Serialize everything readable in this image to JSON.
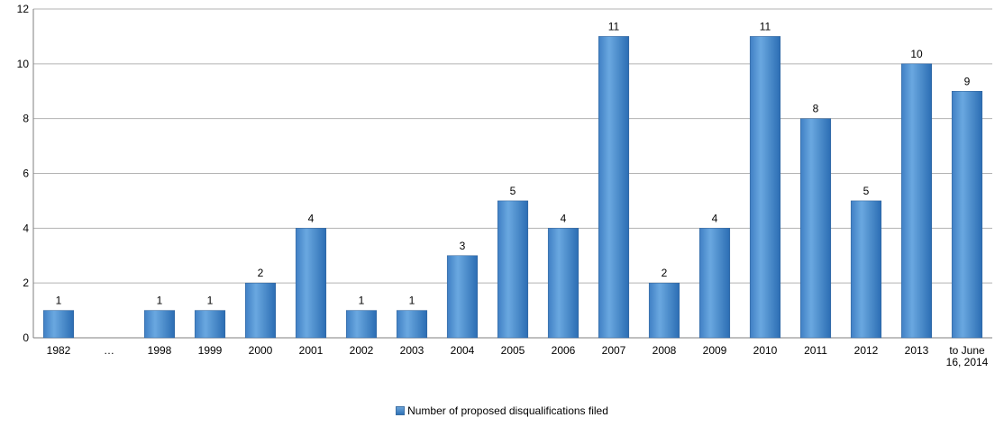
{
  "chart_data": {
    "type": "bar",
    "categories": [
      "1982",
      "…",
      "1998",
      "1999",
      "2000",
      "2001",
      "2002",
      "2003",
      "2004",
      "2005",
      "2006",
      "2007",
      "2008",
      "2009",
      "2010",
      "2011",
      "2012",
      "2013",
      "to June 16, 2014"
    ],
    "category_lines": [
      [
        "1982"
      ],
      [
        "…"
      ],
      [
        "1998"
      ],
      [
        "1999"
      ],
      [
        "2000"
      ],
      [
        "2001"
      ],
      [
        "2002"
      ],
      [
        "2003"
      ],
      [
        "2004"
      ],
      [
        "2005"
      ],
      [
        "2006"
      ],
      [
        "2007"
      ],
      [
        "2008"
      ],
      [
        "2009"
      ],
      [
        "2010"
      ],
      [
        "2011"
      ],
      [
        "2012"
      ],
      [
        "2013"
      ],
      [
        "to June",
        "16, 2014"
      ]
    ],
    "series": [
      {
        "name": "Number of proposed disqualifications filed",
        "values": [
          1,
          null,
          1,
          1,
          2,
          4,
          1,
          1,
          3,
          5,
          4,
          11,
          2,
          4,
          11,
          8,
          5,
          10,
          9
        ],
        "data_labels": [
          "1",
          "",
          "1",
          "1",
          "2",
          "4",
          "1",
          "1",
          "3",
          "5",
          "4",
          "11",
          "2",
          "4",
          "11",
          "8",
          "5",
          "10",
          "9"
        ]
      }
    ],
    "ylim": [
      0,
      12
    ],
    "yticks": [
      0,
      2,
      4,
      6,
      8,
      10,
      12
    ],
    "grid": true,
    "legend_position": "bottom",
    "colors": {
      "bar_top": "#6aa3d8",
      "bar_bottom": "#2b6db3",
      "bar_edge": "#2f5f95",
      "grid": "#b3b3b3",
      "axis": "#7f7f7f"
    }
  }
}
